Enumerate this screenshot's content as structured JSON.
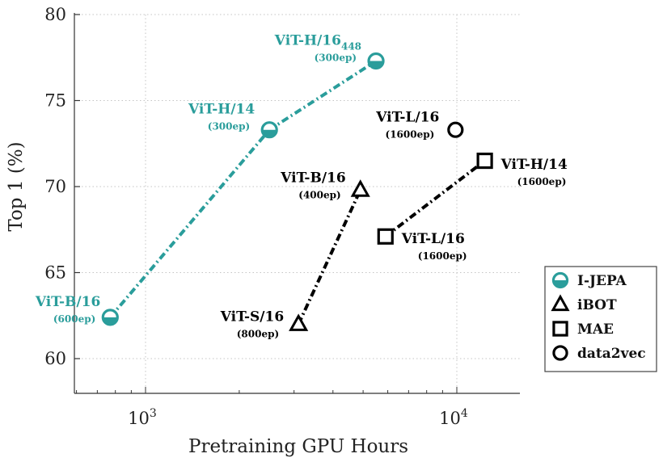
{
  "chart_data": {
    "type": "scatter",
    "xlabel": "Pretraining GPU Hours",
    "ylabel": "Top 1 (%)",
    "xscale": "log",
    "xlim": [
      600,
      16000
    ],
    "ylim": [
      58.5,
      80
    ],
    "yticks": [
      "60",
      "65",
      "70",
      "75",
      "80"
    ],
    "xticks": [
      {
        "value": 1000,
        "base": "10",
        "exp": "3"
      },
      {
        "value": 10000,
        "base": "10",
        "exp": "4"
      }
    ],
    "grid": true,
    "legend_position": "bottom-right",
    "series": [
      {
        "name": "I-JEPA",
        "marker": "half-circle",
        "color": "#2a9d9b",
        "connected": true,
        "points": [
          {
            "x": 770,
            "y": 62.4,
            "label": "ViT-B/16",
            "sub": "(600ep)"
          },
          {
            "x": 2500,
            "y": 73.3,
            "label": "ViT-H/14",
            "sub": "(300ep)"
          },
          {
            "x": 5500,
            "y": 77.3,
            "label": "ViT-H/16",
            "label_sub": "448",
            "sub": "(300ep)"
          }
        ]
      },
      {
        "name": "iBOT",
        "marker": "triangle",
        "color": "#000000",
        "connected": true,
        "points": [
          {
            "x": 3100,
            "y": 62.0,
            "label": "ViT-S/16",
            "sub": "(800ep)"
          },
          {
            "x": 4900,
            "y": 69.8,
            "label": "ViT-B/16",
            "sub": "(400ep)"
          }
        ]
      },
      {
        "name": "MAE",
        "marker": "square",
        "color": "#000000",
        "connected": true,
        "points": [
          {
            "x": 5900,
            "y": 67.1,
            "label": "ViT-L/16",
            "sub": "(1600ep)"
          },
          {
            "x": 12300,
            "y": 71.5,
            "label": "ViT-H/14",
            "sub": "(1600ep)"
          }
        ]
      },
      {
        "name": "data2vec",
        "marker": "circle",
        "color": "#000000",
        "connected": false,
        "points": [
          {
            "x": 9900,
            "y": 73.3,
            "label": "ViT-L/16",
            "sub": "(1600ep)"
          }
        ]
      }
    ]
  }
}
